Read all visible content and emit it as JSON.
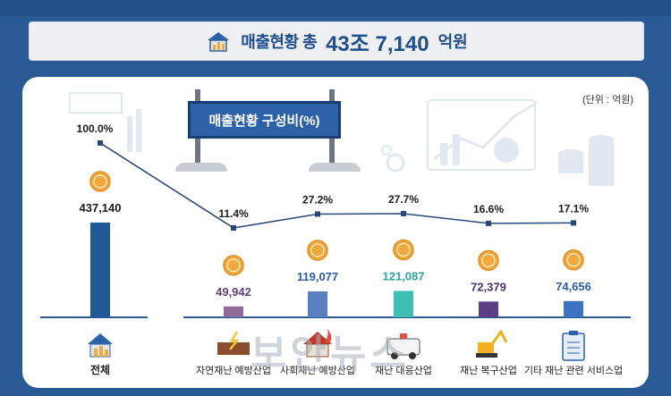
{
  "header": {
    "title_prefix": "매출현황 총",
    "title_amount": "43조 7,140",
    "title_suffix": "억원"
  },
  "unit_label": "(단위 : 억원)",
  "sign_title": "매출현황 구성비(%)",
  "watermark": "보안뉴스",
  "colors": {
    "background": "#2a5a96",
    "total_bar": "#1f5a96",
    "coin": "#f2a93b",
    "line": "#27497a"
  },
  "chart_data": {
    "type": "bar",
    "categories": [
      "전체",
      "자연재난 예방산업",
      "사회재난 예방산업",
      "재난 대응산업",
      "재난 복구산업",
      "기타 재난 관련 서비스업"
    ],
    "values": [
      437140,
      49942,
      119077,
      121087,
      72379,
      74656
    ],
    "value_labels": [
      "437,140",
      "49,942",
      "119,077",
      "121,087",
      "72,379",
      "74,656"
    ],
    "bar_colors": [
      "#1f5a96",
      "#8f6a9a",
      "#5c7fc2",
      "#3ebfb2",
      "#5a3f86",
      "#3d74c2"
    ],
    "value_label_colors": [
      "#1b1b1b",
      "#5a3f7a",
      "#2e5aa8",
      "#2aa59a",
      "#4a2f76",
      "#2e5aa8"
    ],
    "share_percent": [
      100.0,
      11.4,
      27.2,
      27.7,
      16.6,
      17.1
    ],
    "share_labels": [
      "100.0%",
      "11.4%",
      "27.2%",
      "27.7%",
      "16.6%",
      "17.1%"
    ],
    "series": [
      {
        "values": [
          437140,
          49942,
          119077,
          121087,
          72379,
          74656
        ]
      },
      {
        "values": [
          100.0,
          11.4,
          27.2,
          27.7,
          16.6,
          17.1
        ]
      }
    ]
  },
  "icons": [
    "house-chart-icon",
    "landslide-icon",
    "house-fire-icon",
    "ambulance-icon",
    "excavator-icon",
    "clipboard-icon",
    "coin-icon",
    "money-stack-icon",
    "growth-chart-icon",
    "gear-icon"
  ]
}
